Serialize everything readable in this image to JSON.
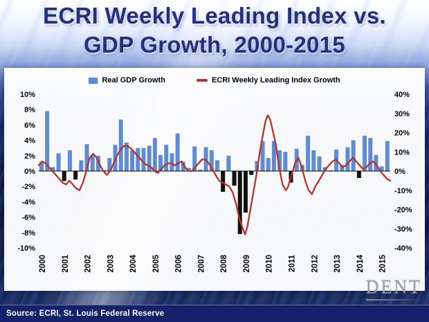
{
  "header": {
    "title_line1": "ECRI Weekly Leading Index vs.",
    "title_line2": "GDP Growth, 2000-2015"
  },
  "legend": {
    "gdp_label": "Real GDP Growth",
    "wli_label": "ECRI Weekly Leading Index Growth"
  },
  "footer": {
    "source_text": "Source: ECRI, St. Louis Federal Reserve",
    "logo_text": "DENT"
  },
  "colors": {
    "gdp_bar": "#5e8bd2",
    "gdp_bar_negative": "#111111",
    "wli_line": "#b5332a",
    "zero_line": "#000000",
    "footer_bar": "#14226b",
    "title_navy": "#23307e",
    "axis_text": "#000000"
  },
  "chart_data": {
    "type": "bar+line",
    "title": "ECRI Weekly Leading Index vs. GDP Growth, 2000-2015",
    "x_years": [
      "2000",
      "2001",
      "2002",
      "2003",
      "2004",
      "2005",
      "2006",
      "2007",
      "2008",
      "2009",
      "2010",
      "2011",
      "2012",
      "2013",
      "2014",
      "2015"
    ],
    "x_domain": [
      2000,
      2015.5
    ],
    "grid": false,
    "legend_position": "top",
    "left_axis": {
      "min": -10,
      "max": 10,
      "ticks": [
        {
          "v": 10,
          "label": "10%"
        },
        {
          "v": 8,
          "label": "8%"
        },
        {
          "v": 6,
          "label": "6%"
        },
        {
          "v": 4,
          "label": "4%"
        },
        {
          "v": 2,
          "label": "2%"
        },
        {
          "v": 0,
          "label": "0%"
        },
        {
          "v": -2,
          "label": "-2%"
        },
        {
          "v": -4,
          "label": "-4%"
        },
        {
          "v": -6,
          "label": "-6%"
        },
        {
          "v": -8,
          "label": "-8%"
        },
        {
          "v": -10,
          "label": "-10%"
        }
      ]
    },
    "right_axis": {
      "min": -40,
      "max": 40,
      "ticks": [
        {
          "v": 40,
          "label": "40%"
        },
        {
          "v": 30,
          "label": "30%"
        },
        {
          "v": 20,
          "label": "20%"
        },
        {
          "v": 10,
          "label": "10%"
        },
        {
          "v": 0,
          "label": "0%"
        },
        {
          "v": -10,
          "label": "-10%"
        },
        {
          "v": -20,
          "label": "-20%"
        },
        {
          "v": -30,
          "label": "-30%"
        },
        {
          "v": -40,
          "label": "-40%"
        }
      ]
    },
    "series": [
      {
        "name": "Real GDP Growth",
        "type": "bar",
        "axis": "left",
        "start_year": 2000,
        "freq": "quarterly",
        "values": [
          1.2,
          7.8,
          0.5,
          2.3,
          -1.3,
          2.7,
          -1.1,
          1.4,
          3.5,
          2.1,
          2.0,
          0.1,
          1.7,
          3.4,
          6.7,
          3.7,
          2.7,
          3.0,
          3.0,
          3.3,
          4.3,
          2.1,
          3.4,
          2.3,
          4.9,
          1.2,
          0.4,
          3.2,
          0.2,
          3.1,
          2.7,
          1.4,
          -2.7,
          2.0,
          -1.9,
          -8.2,
          -5.4,
          -0.5,
          1.3,
          3.9,
          1.7,
          3.9,
          2.7,
          2.5,
          -1.5,
          2.9,
          0.8,
          4.6,
          2.7,
          1.9,
          0.5,
          0.1,
          2.8,
          0.8,
          3.1,
          4.0,
          -0.9,
          4.6,
          4.3,
          2.1,
          0.6,
          3.9
        ]
      },
      {
        "name": "ECRI Weekly Leading Index Growth",
        "type": "line",
        "axis": "right",
        "points": [
          [
            2000.0,
            3
          ],
          [
            2000.15,
            5
          ],
          [
            2000.3,
            4
          ],
          [
            2000.45,
            2
          ],
          [
            2000.6,
            0
          ],
          [
            2000.75,
            -2
          ],
          [
            2000.9,
            -4
          ],
          [
            2001.05,
            -6
          ],
          [
            2001.2,
            -7
          ],
          [
            2001.35,
            -5
          ],
          [
            2001.5,
            -7
          ],
          [
            2001.65,
            -9
          ],
          [
            2001.8,
            -10
          ],
          [
            2001.95,
            -6
          ],
          [
            2002.1,
            0
          ],
          [
            2002.25,
            7
          ],
          [
            2002.4,
            9
          ],
          [
            2002.55,
            7
          ],
          [
            2002.7,
            3
          ],
          [
            2002.85,
            0
          ],
          [
            2003.0,
            -2
          ],
          [
            2003.15,
            0
          ],
          [
            2003.3,
            4
          ],
          [
            2003.45,
            8
          ],
          [
            2003.6,
            11
          ],
          [
            2003.75,
            13
          ],
          [
            2003.9,
            13
          ],
          [
            2004.05,
            12
          ],
          [
            2004.2,
            10
          ],
          [
            2004.35,
            8
          ],
          [
            2004.5,
            6
          ],
          [
            2004.65,
            4
          ],
          [
            2004.8,
            3
          ],
          [
            2004.95,
            2
          ],
          [
            2005.1,
            0
          ],
          [
            2005.25,
            -1
          ],
          [
            2005.4,
            1
          ],
          [
            2005.55,
            3
          ],
          [
            2005.7,
            4
          ],
          [
            2005.85,
            4
          ],
          [
            2006.0,
            3
          ],
          [
            2006.15,
            4
          ],
          [
            2006.3,
            5
          ],
          [
            2006.45,
            2
          ],
          [
            2006.6,
            0
          ],
          [
            2006.75,
            0
          ],
          [
            2006.9,
            2
          ],
          [
            2007.05,
            4
          ],
          [
            2007.2,
            6
          ],
          [
            2007.35,
            6
          ],
          [
            2007.5,
            4
          ],
          [
            2007.65,
            1
          ],
          [
            2007.8,
            -2
          ],
          [
            2007.95,
            -5
          ],
          [
            2008.1,
            -6
          ],
          [
            2008.25,
            -7
          ],
          [
            2008.4,
            -8
          ],
          [
            2008.55,
            -11
          ],
          [
            2008.7,
            -17
          ],
          [
            2008.85,
            -25
          ],
          [
            2009.0,
            -30
          ],
          [
            2009.1,
            -33
          ],
          [
            2009.2,
            -29
          ],
          [
            2009.3,
            -22
          ],
          [
            2009.45,
            -12
          ],
          [
            2009.6,
            -2
          ],
          [
            2009.75,
            10
          ],
          [
            2009.9,
            20
          ],
          [
            2010.0,
            26
          ],
          [
            2010.1,
            29
          ],
          [
            2010.2,
            27
          ],
          [
            2010.3,
            22
          ],
          [
            2010.45,
            14
          ],
          [
            2010.6,
            2
          ],
          [
            2010.75,
            -7
          ],
          [
            2010.9,
            -10
          ],
          [
            2011.0,
            -8
          ],
          [
            2011.15,
            -2
          ],
          [
            2011.3,
            4
          ],
          [
            2011.45,
            7
          ],
          [
            2011.6,
            2
          ],
          [
            2011.75,
            -5
          ],
          [
            2011.9,
            -10
          ],
          [
            2012.05,
            -12
          ],
          [
            2012.2,
            -8
          ],
          [
            2012.35,
            -5
          ],
          [
            2012.5,
            -2
          ],
          [
            2012.65,
            1
          ],
          [
            2012.8,
            3
          ],
          [
            2012.95,
            5
          ],
          [
            2013.1,
            6
          ],
          [
            2013.25,
            4
          ],
          [
            2013.4,
            2
          ],
          [
            2013.55,
            3
          ],
          [
            2013.7,
            5
          ],
          [
            2013.85,
            7
          ],
          [
            2014.0,
            5
          ],
          [
            2014.15,
            3
          ],
          [
            2014.3,
            1
          ],
          [
            2014.45,
            2
          ],
          [
            2014.6,
            4
          ],
          [
            2014.75,
            5
          ],
          [
            2014.9,
            3
          ],
          [
            2015.05,
            0
          ],
          [
            2015.2,
            -2
          ],
          [
            2015.35,
            -4
          ],
          [
            2015.5,
            -5
          ]
        ]
      }
    ]
  }
}
